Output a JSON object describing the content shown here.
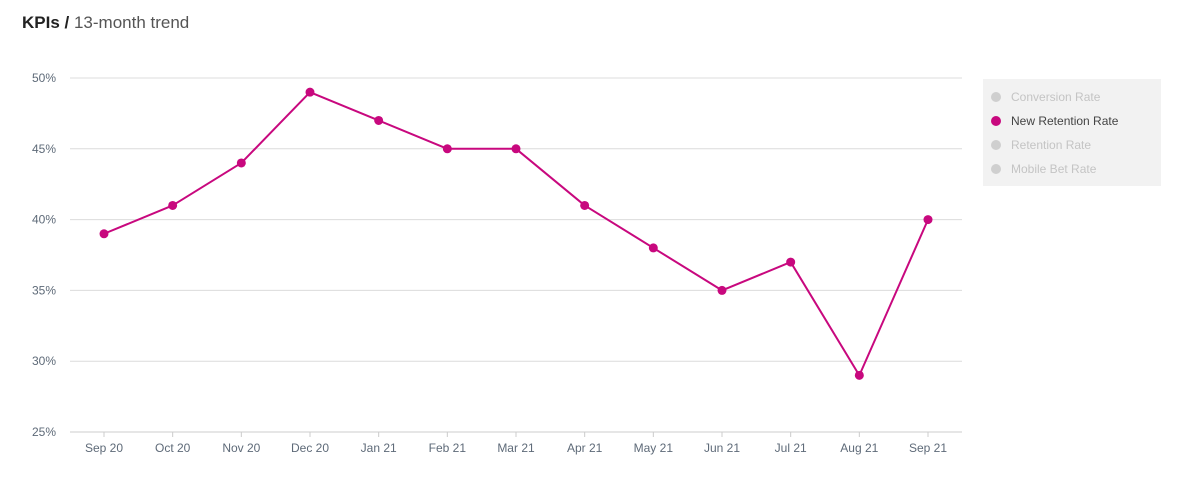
{
  "header": {
    "title": "KPIs",
    "separator": " / ",
    "subtitle": "13-month trend"
  },
  "colors": {
    "series": "#c8087e",
    "grid": "#dcdcdc",
    "axis_text": "#5e6a78",
    "legend_bg": "#f2f2f2",
    "legend_inactive": "#c4c4c4"
  },
  "legend": {
    "items": [
      {
        "label": "Conversion Rate",
        "active": false
      },
      {
        "label": "New Retention Rate",
        "active": true
      },
      {
        "label": "Retention Rate",
        "active": false
      },
      {
        "label": "Mobile Bet Rate",
        "active": false
      }
    ]
  },
  "chart_data": {
    "type": "line",
    "categories": [
      "Sep 20",
      "Oct 20",
      "Nov 20",
      "Dec 20",
      "Jan 21",
      "Feb 21",
      "Mar 21",
      "Apr 21",
      "May 21",
      "Jun 21",
      "Jul 21",
      "Aug 21",
      "Sep 21"
    ],
    "series": [
      {
        "name": "New Retention Rate",
        "values": [
          39,
          41,
          44,
          49,
          47,
          45,
          45,
          41,
          38,
          35,
          37,
          29,
          40
        ]
      }
    ],
    "yticks": [
      "25%",
      "30%",
      "35%",
      "40%",
      "45%",
      "50%"
    ],
    "ylim": [
      25,
      50
    ],
    "grid": true,
    "legend_position": "right"
  }
}
